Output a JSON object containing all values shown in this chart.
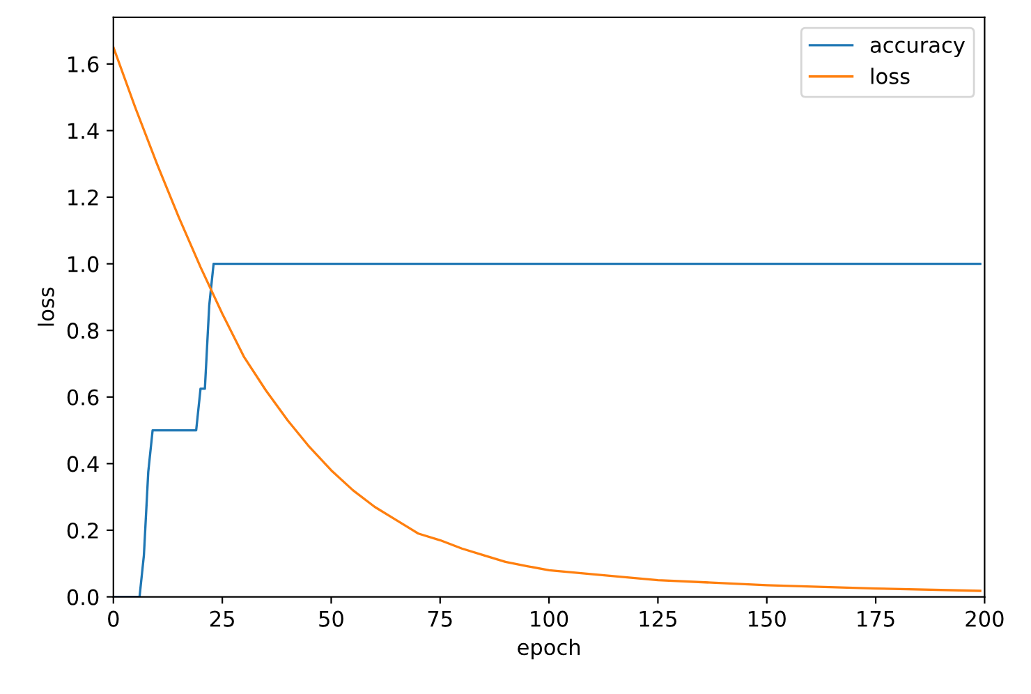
{
  "chart_data": {
    "type": "line",
    "xlabel": "epoch",
    "ylabel": "loss",
    "series": [
      {
        "name": "accuracy",
        "color": "#1f77b4",
        "x": [
          0,
          6,
          7,
          8,
          9,
          19,
          20,
          21,
          22,
          23,
          199
        ],
        "values": [
          0,
          0,
          0.125,
          0.375,
          0.5,
          0.5,
          0.625,
          0.625,
          0.875,
          1.0,
          1.0
        ]
      },
      {
        "name": "loss",
        "color": "#ff7f0e",
        "x": [
          0,
          5,
          10,
          15,
          20,
          25,
          30,
          35,
          40,
          45,
          50,
          55,
          60,
          65,
          70,
          75,
          80,
          85,
          90,
          95,
          100,
          110,
          125,
          150,
          175,
          199
        ],
        "values": [
          1.65,
          1.47,
          1.3,
          1.14,
          0.99,
          0.85,
          0.72,
          0.62,
          0.53,
          0.45,
          0.38,
          0.32,
          0.27,
          0.23,
          0.19,
          0.17,
          0.145,
          0.125,
          0.105,
          0.092,
          0.08,
          0.068,
          0.05,
          0.035,
          0.025,
          0.018
        ]
      }
    ],
    "xlim": [
      0,
      200
    ],
    "ylim": [
      0,
      1.74
    ],
    "xticks": [
      0,
      25,
      50,
      75,
      100,
      125,
      150,
      175,
      200
    ],
    "yticks": [
      {
        "value": 0,
        "label": "0.0"
      },
      0.2,
      0.4,
      0.6,
      0.8,
      {
        "value": 1,
        "label": "1.0"
      },
      1.2,
      1.4,
      1.6
    ],
    "legend": "top right",
    "grid": false
  }
}
